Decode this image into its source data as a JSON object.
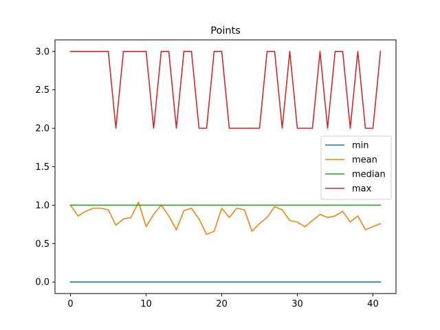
{
  "chart_data": {
    "type": "line",
    "title": "Points",
    "xlabel": "",
    "ylabel": "",
    "xlim": [
      -2.05,
      43.05
    ],
    "ylim": [
      -0.15,
      3.15
    ],
    "x_ticks": [
      0,
      10,
      20,
      30,
      40
    ],
    "y_ticks": [
      0.0,
      0.5,
      1.0,
      1.5,
      2.0,
      2.5,
      3.0
    ],
    "y_tick_labels": [
      "0.0",
      "0.5",
      "1.0",
      "1.5",
      "2.0",
      "2.5",
      "3.0"
    ],
    "grid": false,
    "legend_position": "center-right",
    "x": [
      0,
      1,
      2,
      3,
      4,
      5,
      6,
      7,
      8,
      9,
      10,
      11,
      12,
      13,
      14,
      15,
      16,
      17,
      18,
      19,
      20,
      21,
      22,
      23,
      24,
      25,
      26,
      27,
      28,
      29,
      30,
      31,
      32,
      33,
      34,
      35,
      36,
      37,
      38,
      39,
      40,
      41
    ],
    "series": [
      {
        "name": "min",
        "color": "#1f77b4",
        "values": [
          0,
          0,
          0,
          0,
          0,
          0,
          0,
          0,
          0,
          0,
          0,
          0,
          0,
          0,
          0,
          0,
          0,
          0,
          0,
          0,
          0,
          0,
          0,
          0,
          0,
          0,
          0,
          0,
          0,
          0,
          0,
          0,
          0,
          0,
          0,
          0,
          0,
          0,
          0,
          0,
          0,
          0
        ]
      },
      {
        "name": "mean",
        "color": "#ff7f0e",
        "values": [
          1.0,
          0.86,
          0.92,
          0.96,
          0.96,
          0.94,
          0.74,
          0.82,
          0.84,
          1.04,
          0.72,
          0.88,
          1.0,
          0.86,
          0.68,
          0.93,
          0.96,
          0.82,
          0.62,
          0.66,
          0.96,
          0.84,
          0.96,
          0.94,
          0.66,
          0.76,
          0.84,
          0.98,
          0.94,
          0.8,
          0.78,
          0.72,
          0.8,
          0.88,
          0.84,
          0.86,
          0.92,
          0.78,
          0.86,
          0.68,
          0.72,
          0.76
        ]
      },
      {
        "name": "median",
        "color": "#2ca02c",
        "values": [
          1,
          1,
          1,
          1,
          1,
          1,
          1,
          1,
          1,
          1,
          1,
          1,
          1,
          1,
          1,
          1,
          1,
          1,
          1,
          1,
          1,
          1,
          1,
          1,
          1,
          1,
          1,
          1,
          1,
          1,
          1,
          1,
          1,
          1,
          1,
          1,
          1,
          1,
          1,
          1,
          1,
          1
        ]
      },
      {
        "name": "max",
        "color": "#d62728",
        "values": [
          3,
          3,
          3,
          3,
          3,
          3,
          2,
          3,
          3,
          3,
          3,
          2,
          3,
          3,
          2,
          3,
          3,
          2,
          2,
          3,
          3,
          2,
          2,
          2,
          2,
          2,
          3,
          3,
          2,
          3,
          2,
          2,
          2,
          3,
          2,
          3,
          3,
          2,
          3,
          2,
          2,
          3
        ]
      }
    ]
  }
}
